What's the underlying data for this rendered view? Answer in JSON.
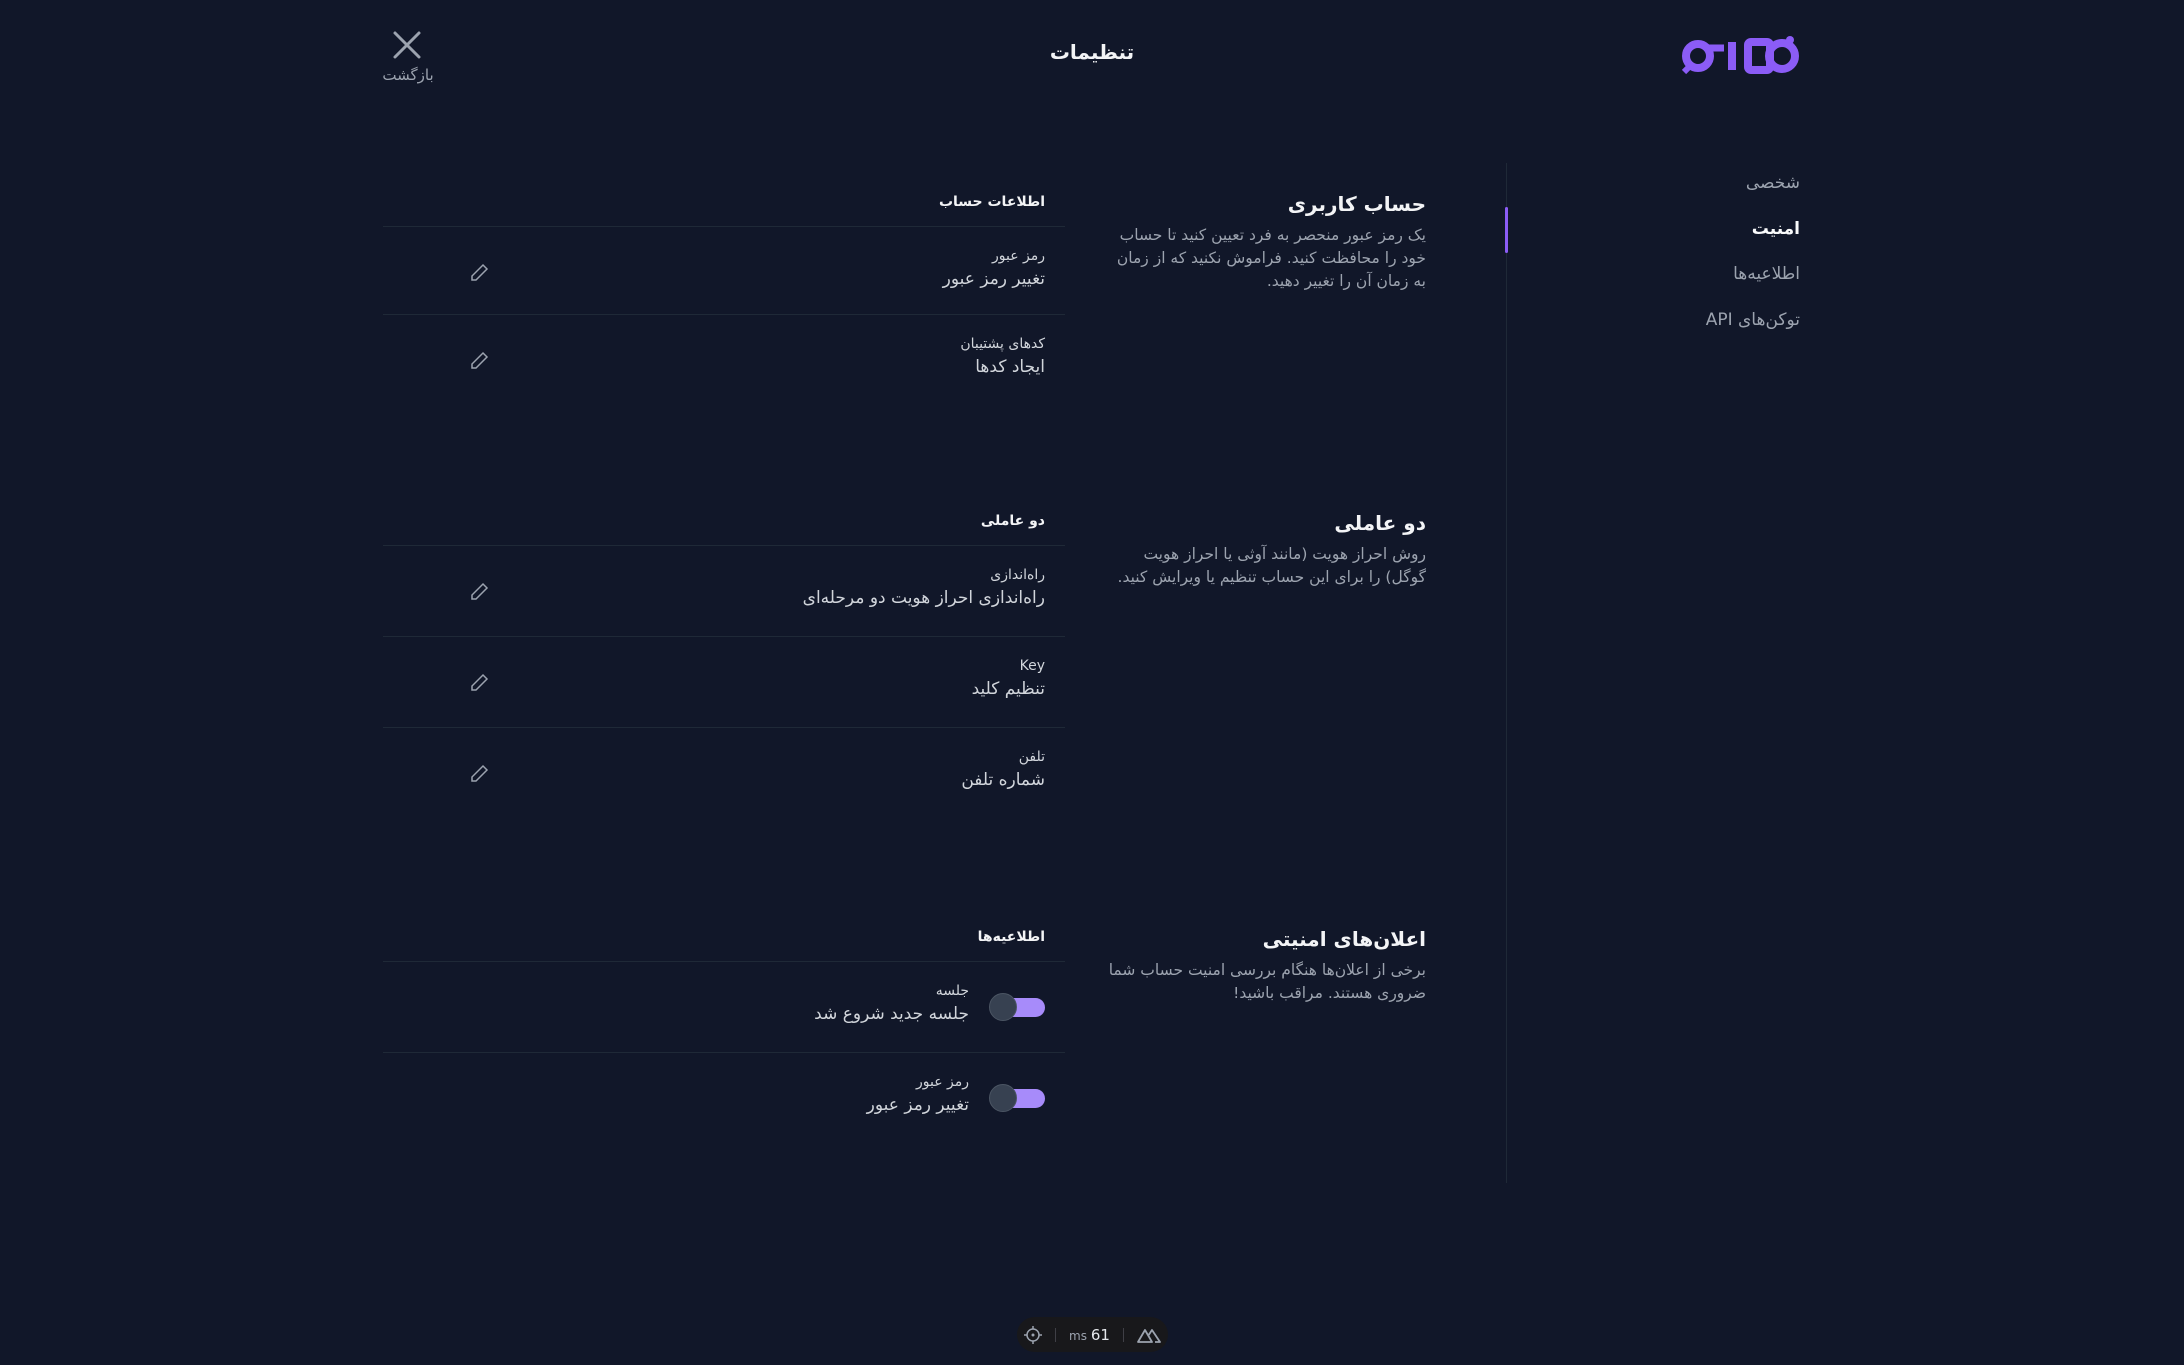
{
  "header": {
    "title": "تنظیمات",
    "back_label": "بازگشت",
    "logo_text": "نتایزو",
    "close_icon": "close-icon"
  },
  "colors": {
    "accent": "#8b5cf6",
    "toggle_track": "#a78bfa",
    "background": "#111729"
  },
  "sidebar": {
    "items": [
      {
        "label": "شخصی",
        "active": false
      },
      {
        "label": "امنیت",
        "active": true
      },
      {
        "label": "اطلاعیه‌ها",
        "active": false
      },
      {
        "label": "توکن‌های API",
        "active": false
      }
    ]
  },
  "sections": [
    {
      "title": "حساب کاربری",
      "description": "یک رمز عبور منحصر به فرد تعیین کنید تا حساب خود را محافظت کنید. فراموش نکنید که از زمان به زمان آن را تغییر دهید.",
      "form_title": "اطلاعات حساب",
      "rows": [
        {
          "label": "رمز عبور",
          "value": "تغییر رمز عبور"
        },
        {
          "label": "کدهای پشتیبان",
          "value": "ایجاد کدها"
        }
      ]
    },
    {
      "title": "دو عاملی",
      "description": "روش احراز هویت (مانند آوثی یا احراز هویت گوگل) را برای این حساب تنظیم یا ویرایش کنید.",
      "form_title": "دو عاملی",
      "rows": [
        {
          "label": "راه‌اندازی",
          "value": "راه‌اندازی احراز هویت دو مرحله‌ای"
        },
        {
          "label": "Key",
          "value": "تنظیم کلید"
        },
        {
          "label": "تلفن",
          "value": "شماره تلفن"
        }
      ]
    },
    {
      "title": "اعلان‌های امنیتی",
      "description": "برخی از اعلان‌ها هنگام بررسی امنیت حساب شما ضروری هستند. مراقب باشید!",
      "form_title": "اطلاعیه‌ها",
      "rows": [
        {
          "label": "جلسه",
          "value": "جلسه جدید شروع شد",
          "toggle": true
        },
        {
          "label": "رمز عبور",
          "value": "تغییر رمز عبور",
          "toggle": true
        }
      ]
    }
  ],
  "devtools": {
    "unit": "ms",
    "value": "61"
  }
}
